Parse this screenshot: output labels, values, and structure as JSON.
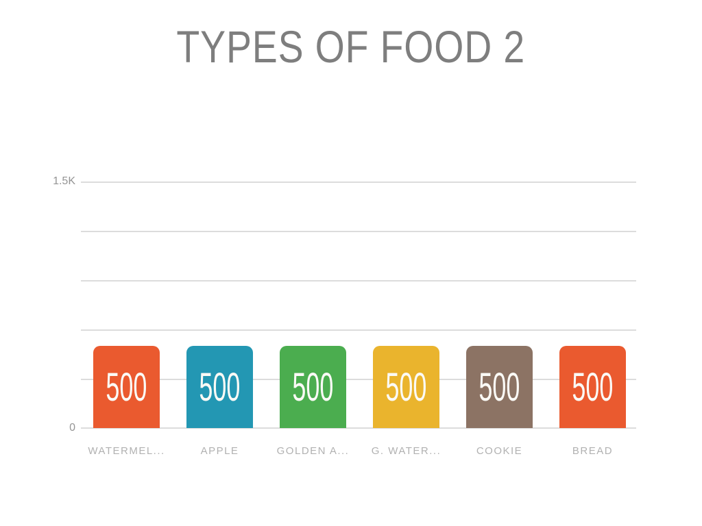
{
  "title": "TYPES OF FOOD 2",
  "y_axis": {
    "top_tick": "1.5K",
    "bottom_tick": "0",
    "min": 0,
    "max": 1500
  },
  "bars": [
    {
      "label": "WATERMEL...",
      "value": 500,
      "color": "#EA5A2F"
    },
    {
      "label": "APPLE",
      "value": 500,
      "color": "#2397B3"
    },
    {
      "label": "GOLDEN A...",
      "value": 500,
      "color": "#4BAD4F"
    },
    {
      "label": "G. WATER...",
      "value": 500,
      "color": "#EAB42D"
    },
    {
      "label": "COOKIE",
      "value": 500,
      "color": "#8C7364"
    },
    {
      "label": "BREAD",
      "value": 500,
      "color": "#EA5A2F"
    }
  ],
  "colors": {
    "title_text": "#7E7E7E",
    "axis_tick_text": "#949494",
    "category_text": "#B1B1B1",
    "gridline": "#DCDCDC",
    "value_label_text": "#FBFAF6",
    "background": "#FFFFFF"
  },
  "chart_data": {
    "type": "bar",
    "title": "TYPES OF FOOD 2",
    "categories": [
      "WATERMEL...",
      "APPLE",
      "GOLDEN A...",
      "G. WATER...",
      "COOKIE",
      "BREAD"
    ],
    "values": [
      500,
      500,
      500,
      500,
      500,
      500
    ],
    "bar_colors": [
      "#EA5A2F",
      "#2397B3",
      "#4BAD4F",
      "#EAB42D",
      "#8C7364",
      "#EA5A2F"
    ],
    "xlabel": "",
    "ylabel": "",
    "ylim": [
      0,
      1500
    ],
    "gridline_values": [
      0,
      300,
      600,
      900,
      1200,
      1500
    ],
    "visible_ytick_labels": [
      "1.5K",
      "0"
    ],
    "grid": "horizontal",
    "legend_position": "none",
    "value_labels": "inside bars, white"
  }
}
